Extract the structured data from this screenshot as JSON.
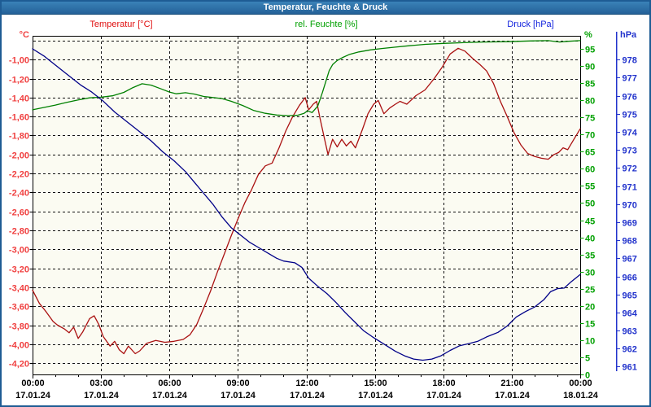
{
  "window": {
    "title": "Temperatur, Feuchte & Druck"
  },
  "colors": {
    "titlebar_bg": "#2e74aa",
    "window_border": "#1e5c94",
    "plot_bg": "#fbfbf2",
    "grid": "#111111",
    "frame": "#000000",
    "x_label": "#000000",
    "temp_curve": "#aa1111",
    "temp_label": "#f04040",
    "temp_header": "#e01010",
    "hum_curve": "#008000",
    "hum_label": "#00a000",
    "pres_curve": "#000088",
    "pres_label": "#2233cc"
  },
  "chart_data": {
    "type": "line",
    "title": "Temperatur, Feuchte & Druck",
    "grid": "on",
    "x_axis": {
      "hours": 24,
      "grid_hours": [
        3,
        6,
        9,
        12,
        15,
        18,
        21
      ],
      "minor_step": 1,
      "major_ticks": [
        {
          "hour": 0,
          "time": "00:00",
          "date": "17.01.24"
        },
        {
          "hour": 3,
          "time": "03:00",
          "date": "17.01.24"
        },
        {
          "hour": 6,
          "time": "06:00",
          "date": "17.01.24"
        },
        {
          "hour": 9,
          "time": "09:00",
          "date": "17.01.24"
        },
        {
          "hour": 12,
          "time": "12:00",
          "date": "17.01.24"
        },
        {
          "hour": 15,
          "time": "15:00",
          "date": "17.01.24"
        },
        {
          "hour": 18,
          "time": "18:00",
          "date": "17.01.24"
        },
        {
          "hour": 21,
          "time": "21:00",
          "date": "17.01.24"
        },
        {
          "hour": 24,
          "time": "00:00",
          "date": "18.01.24"
        }
      ]
    },
    "axes": {
      "temperature": {
        "header": "Temperatur [°C]",
        "unit": "°C",
        "min": -4.319,
        "max": -0.749,
        "tick_values": [
          -1.0,
          -1.2,
          -1.4,
          -1.6,
          -1.8,
          -2.0,
          -2.2,
          -2.4,
          -2.6,
          -2.8,
          -3.0,
          -3.2,
          -3.4,
          -3.6,
          -3.8,
          -4.0,
          -4.2
        ],
        "tick_labels": [
          "-1,00",
          "-1,20",
          "-1,40",
          "-1,60",
          "-1,80",
          "-2,00",
          "-2,20",
          "-2,40",
          "-2,60",
          "-2,80",
          "-3,00",
          "-3,20",
          "-3,40",
          "-3,60",
          "-3,80",
          "-4,00",
          "-4,20"
        ],
        "grid_values": [
          -0.8,
          -1.0,
          -1.2,
          -1.4,
          -1.6,
          -1.8,
          -2.0,
          -2.2,
          -2.4,
          -2.6,
          -2.8,
          -3.0,
          -3.2,
          -3.4,
          -3.6,
          -3.8,
          -4.0,
          -4.2
        ]
      },
      "humidity": {
        "header": "rel. Feuchte [%]",
        "unit": "%",
        "min": 0,
        "max": 98.8,
        "tick_values": [
          0,
          5,
          10,
          15,
          20,
          25,
          30,
          35,
          40,
          45,
          50,
          55,
          60,
          65,
          70,
          75,
          80,
          85,
          90,
          95
        ],
        "tick_labels": [
          "0",
          "5",
          "10",
          "15",
          "20",
          "25",
          "30",
          "35",
          "40",
          "45",
          "50",
          "55",
          "60",
          "65",
          "70",
          "75",
          "80",
          "85",
          "90",
          "95"
        ]
      },
      "pressure": {
        "header": "Druck [hPa]",
        "unit": "hPa",
        "min": 960.57,
        "max": 979.32,
        "tick_values": [
          961,
          962,
          963,
          964,
          965,
          966,
          967,
          968,
          969,
          970,
          971,
          972,
          973,
          974,
          975,
          976,
          977,
          978
        ],
        "tick_labels": [
          "961",
          "962",
          "963",
          "964",
          "965",
          "966",
          "967",
          "968",
          "969",
          "970",
          "971",
          "972",
          "973",
          "974",
          "975",
          "976",
          "977",
          "978"
        ]
      }
    },
    "series": [
      {
        "name": "Temperatur",
        "axis": "temperature",
        "color": "#aa1111",
        "points": [
          [
            0,
            -3.43
          ],
          [
            0.3,
            -3.57
          ],
          [
            0.6,
            -3.66
          ],
          [
            0.9,
            -3.76
          ],
          [
            1.1,
            -3.8
          ],
          [
            1.4,
            -3.84
          ],
          [
            1.6,
            -3.88
          ],
          [
            1.8,
            -3.82
          ],
          [
            2.0,
            -3.94
          ],
          [
            2.2,
            -3.87
          ],
          [
            2.5,
            -3.73
          ],
          [
            2.7,
            -3.7
          ],
          [
            2.9,
            -3.79
          ],
          [
            3.1,
            -3.92
          ],
          [
            3.4,
            -4.02
          ],
          [
            3.6,
            -3.97
          ],
          [
            3.8,
            -4.06
          ],
          [
            4.0,
            -4.1
          ],
          [
            4.2,
            -4.02
          ],
          [
            4.5,
            -4.1
          ],
          [
            4.7,
            -4.07
          ],
          [
            5.0,
            -3.99
          ],
          [
            5.4,
            -3.96
          ],
          [
            5.8,
            -3.98
          ],
          [
            6.2,
            -3.97
          ],
          [
            6.6,
            -3.95
          ],
          [
            6.9,
            -3.9
          ],
          [
            7.2,
            -3.79
          ],
          [
            7.5,
            -3.62
          ],
          [
            7.8,
            -3.44
          ],
          [
            8.1,
            -3.24
          ],
          [
            8.4,
            -3.05
          ],
          [
            8.7,
            -2.86
          ],
          [
            9.0,
            -2.68
          ],
          [
            9.3,
            -2.51
          ],
          [
            9.6,
            -2.37
          ],
          [
            9.9,
            -2.21
          ],
          [
            10.2,
            -2.12
          ],
          [
            10.5,
            -2.09
          ],
          [
            10.8,
            -1.93
          ],
          [
            11.1,
            -1.75
          ],
          [
            11.4,
            -1.6
          ],
          [
            11.7,
            -1.48
          ],
          [
            11.95,
            -1.4
          ],
          [
            12.1,
            -1.53
          ],
          [
            12.3,
            -1.47
          ],
          [
            12.45,
            -1.44
          ],
          [
            12.6,
            -1.62
          ],
          [
            12.8,
            -1.84
          ],
          [
            12.95,
            -2.0
          ],
          [
            13.15,
            -1.84
          ],
          [
            13.35,
            -1.92
          ],
          [
            13.55,
            -1.84
          ],
          [
            13.75,
            -1.91
          ],
          [
            13.95,
            -1.86
          ],
          [
            14.15,
            -1.93
          ],
          [
            14.45,
            -1.74
          ],
          [
            14.7,
            -1.57
          ],
          [
            14.95,
            -1.47
          ],
          [
            15.15,
            -1.43
          ],
          [
            15.4,
            -1.57
          ],
          [
            15.65,
            -1.51
          ],
          [
            15.9,
            -1.47
          ],
          [
            16.1,
            -1.44
          ],
          [
            16.4,
            -1.47
          ],
          [
            16.8,
            -1.38
          ],
          [
            17.2,
            -1.32
          ],
          [
            17.6,
            -1.2
          ],
          [
            17.95,
            -1.08
          ],
          [
            18.3,
            -0.94
          ],
          [
            18.65,
            -0.88
          ],
          [
            18.95,
            -0.91
          ],
          [
            19.3,
            -0.99
          ],
          [
            19.6,
            -1.05
          ],
          [
            19.9,
            -1.12
          ],
          [
            20.2,
            -1.25
          ],
          [
            20.5,
            -1.44
          ],
          [
            20.8,
            -1.6
          ],
          [
            21.1,
            -1.77
          ],
          [
            21.4,
            -1.9
          ],
          [
            21.7,
            -1.99
          ],
          [
            22.0,
            -2.02
          ],
          [
            22.3,
            -2.04
          ],
          [
            22.6,
            -2.05
          ],
          [
            22.85,
            -2.0
          ],
          [
            23.05,
            -1.98
          ],
          [
            23.25,
            -1.93
          ],
          [
            23.45,
            -1.95
          ],
          [
            23.65,
            -1.87
          ],
          [
            23.8,
            -1.81
          ],
          [
            24,
            -1.73
          ]
        ]
      },
      {
        "name": "rel. Feuchte",
        "axis": "humidity",
        "color": "#008000",
        "points": [
          [
            0,
            77.2
          ],
          [
            0.5,
            77.9
          ],
          [
            1,
            78.6
          ],
          [
            1.5,
            79.4
          ],
          [
            2,
            80.1
          ],
          [
            2.5,
            80.7
          ],
          [
            3,
            80.9
          ],
          [
            3.5,
            81.3
          ],
          [
            4,
            82.3
          ],
          [
            4.4,
            83.7
          ],
          [
            4.8,
            84.8
          ],
          [
            5.2,
            84.4
          ],
          [
            5.6,
            83.4
          ],
          [
            6.0,
            82.4
          ],
          [
            6.3,
            81.9
          ],
          [
            6.7,
            82.2
          ],
          [
            7.1,
            81.8
          ],
          [
            7.5,
            81.1
          ],
          [
            7.9,
            80.8
          ],
          [
            8.3,
            80.5
          ],
          [
            8.7,
            79.7
          ],
          [
            9.2,
            78.5
          ],
          [
            9.7,
            77.0
          ],
          [
            10.2,
            76.2
          ],
          [
            10.7,
            75.7
          ],
          [
            11.2,
            75.5
          ],
          [
            11.6,
            75.6
          ],
          [
            11.9,
            76.2
          ],
          [
            12.05,
            76.9
          ],
          [
            12.25,
            76.4
          ],
          [
            12.5,
            78.3
          ],
          [
            12.7,
            82.2
          ],
          [
            12.85,
            85.4
          ],
          [
            13.0,
            88.6
          ],
          [
            13.15,
            90.4
          ],
          [
            13.35,
            91.6
          ],
          [
            13.6,
            92.5
          ],
          [
            13.9,
            93.4
          ],
          [
            14.3,
            94.1
          ],
          [
            14.8,
            94.7
          ],
          [
            15.3,
            95.1
          ],
          [
            15.9,
            95.5
          ],
          [
            16.5,
            95.9
          ],
          [
            17.2,
            96.3
          ],
          [
            18.0,
            96.6
          ],
          [
            18.9,
            96.8
          ],
          [
            19.8,
            97.0
          ],
          [
            20.8,
            97.1
          ],
          [
            21.8,
            97.3
          ],
          [
            22.6,
            97.4
          ],
          [
            23.1,
            97.0
          ],
          [
            23.5,
            97.2
          ],
          [
            24,
            97.4
          ]
        ]
      },
      {
        "name": "Druck",
        "axis": "pressure",
        "color": "#000088",
        "points": [
          [
            0,
            978.6
          ],
          [
            0.5,
            978.2
          ],
          [
            1,
            977.7
          ],
          [
            1.6,
            977.1
          ],
          [
            2.1,
            976.6
          ],
          [
            2.6,
            976.2
          ],
          [
            3.1,
            975.7
          ],
          [
            3.6,
            975.1
          ],
          [
            4.1,
            974.6
          ],
          [
            4.7,
            974.0
          ],
          [
            5.2,
            973.5
          ],
          [
            5.7,
            972.9
          ],
          [
            6.2,
            972.4
          ],
          [
            6.7,
            971.8
          ],
          [
            7.1,
            971.2
          ],
          [
            7.5,
            970.6
          ],
          [
            7.9,
            970.0
          ],
          [
            8.3,
            969.3
          ],
          [
            8.7,
            968.7
          ],
          [
            9.1,
            968.3
          ],
          [
            9.5,
            967.9
          ],
          [
            9.9,
            967.6
          ],
          [
            10.3,
            967.3
          ],
          [
            10.7,
            967.0
          ],
          [
            11.0,
            966.85
          ],
          [
            11.5,
            966.75
          ],
          [
            11.8,
            966.5
          ],
          [
            12.1,
            965.9
          ],
          [
            12.5,
            965.45
          ],
          [
            12.9,
            965.05
          ],
          [
            13.3,
            964.55
          ],
          [
            13.7,
            964.0
          ],
          [
            14.1,
            963.5
          ],
          [
            14.5,
            963.0
          ],
          [
            14.9,
            962.65
          ],
          [
            15.4,
            962.25
          ],
          [
            15.9,
            961.85
          ],
          [
            16.3,
            961.6
          ],
          [
            16.7,
            961.42
          ],
          [
            17.1,
            961.36
          ],
          [
            17.5,
            961.42
          ],
          [
            17.9,
            961.6
          ],
          [
            18.3,
            961.9
          ],
          [
            18.7,
            962.15
          ],
          [
            19.1,
            962.27
          ],
          [
            19.5,
            962.4
          ],
          [
            19.9,
            962.65
          ],
          [
            20.4,
            962.9
          ],
          [
            20.8,
            963.25
          ],
          [
            21.2,
            963.75
          ],
          [
            21.6,
            964.05
          ],
          [
            22.0,
            964.3
          ],
          [
            22.4,
            964.7
          ],
          [
            22.7,
            965.15
          ],
          [
            23.0,
            965.32
          ],
          [
            23.3,
            965.35
          ],
          [
            23.6,
            965.7
          ],
          [
            24,
            966.1
          ]
        ]
      }
    ]
  }
}
